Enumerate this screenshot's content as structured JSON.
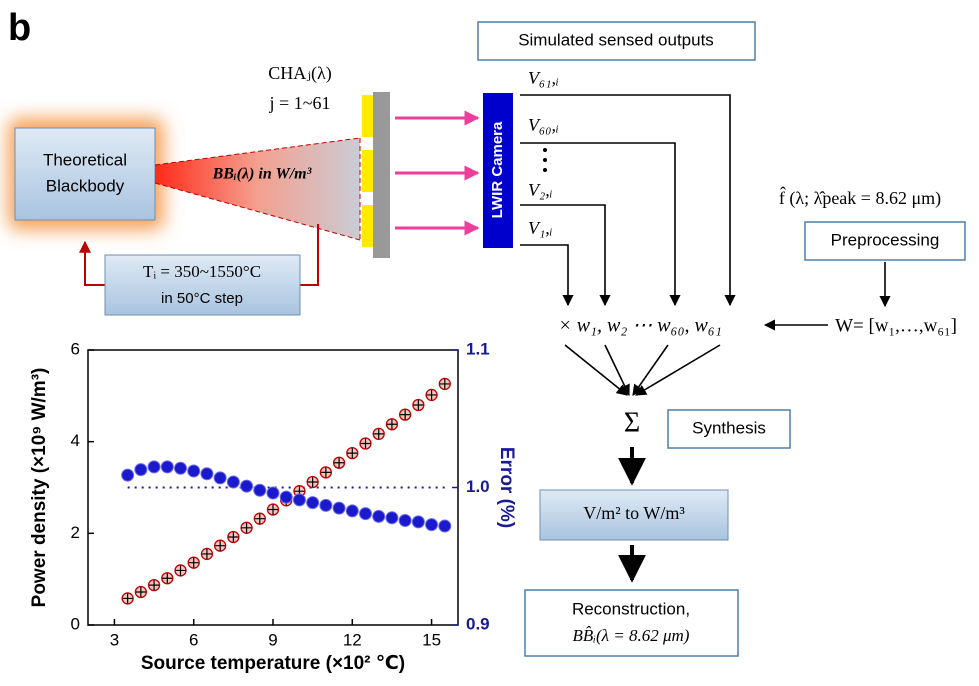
{
  "diagram": {
    "panel_label": "b",
    "blackbody": [
      "Theoretical",
      "Blackbody"
    ],
    "beam": "BBᵢ(λ) in W/m³",
    "channel": "CHAⱼ(λ)",
    "channel_range": "j = 1~61",
    "temperature": [
      "Tᵢ = 350~1550°C",
      "in 50°C step"
    ],
    "camera": "LWIR Camera",
    "outputs_title": "Simulated sensed outputs",
    "outputs": [
      "V₆₁,ᵢ",
      "V₆₀,ᵢ",
      "V₂,ᵢ",
      "V₁,ᵢ"
    ],
    "filter_function": "f̂ (λ; λ̂peak = 8.62 μm)",
    "preprocessing": "Preprocessing",
    "weights": "× w₁, w₂ ⋯ w₆₀, w₆₁",
    "weight_vector": "W= [w₁,…,w₆₁]",
    "sum": "Σ",
    "synthesis": "Synthesis",
    "conversion": "V/m² to W/m³",
    "reconstruction": [
      "Reconstruction,",
      "BB̂ᵢ(λ = 8.62 μm)"
    ]
  },
  "chart_data": {
    "type": "scatter",
    "xlabel": "Source temperature (×10² ℃)",
    "ylabel": "Power density (×10⁹ W/m³)",
    "y2label": "Error (%)",
    "x": [
      3.5,
      4,
      4.5,
      5,
      5.5,
      6,
      6.5,
      7,
      7.5,
      8,
      8.5,
      9,
      9.5,
      10,
      10.5,
      11,
      11.5,
      12,
      12.5,
      13,
      13.5,
      14,
      14.5,
      15,
      15.5
    ],
    "series": [
      {
        "marker": "circle",
        "color": "#c00000",
        "values": [
          0.58,
          0.72,
          0.87,
          1.02,
          1.19,
          1.36,
          1.55,
          1.73,
          1.92,
          2.12,
          2.32,
          2.52,
          2.72,
          2.92,
          3.12,
          3.33,
          3.54,
          3.75,
          3.96,
          4.17,
          4.38,
          4.59,
          4.8,
          5.02,
          5.26
        ]
      },
      {
        "marker": "plus",
        "color": "#000000",
        "values": [
          0.58,
          0.72,
          0.87,
          1.02,
          1.19,
          1.36,
          1.55,
          1.73,
          1.92,
          2.12,
          2.32,
          2.52,
          2.72,
          2.92,
          3.12,
          3.33,
          3.54,
          3.75,
          3.96,
          4.17,
          4.38,
          4.59,
          4.8,
          5.02,
          5.26
        ]
      },
      {
        "marker": "ball",
        "color": "#1a1acc",
        "axis": "y2",
        "values": [
          1.009,
          1.013,
          1.015,
          1.015,
          1.014,
          1.012,
          1.01,
          1.007,
          1.004,
          1.001,
          0.998,
          0.996,
          0.993,
          0.991,
          0.989,
          0.987,
          0.985,
          0.983,
          0.981,
          0.979,
          0.978,
          0.976,
          0.975,
          0.973,
          0.972
        ]
      }
    ],
    "reference_y2": 1,
    "xlim": [
      2,
      16
    ],
    "xticks": [
      3,
      6,
      9,
      12,
      15
    ],
    "ylim": [
      0,
      6
    ],
    "yticks": [
      0,
      2,
      4,
      6
    ],
    "y2lim": [
      0.9,
      1.1
    ],
    "y2ticks": [
      0.9,
      {
        "value": 1,
        "label": "1.0"
      },
      1.1
    ],
    "y2color": "#1a1a99"
  }
}
